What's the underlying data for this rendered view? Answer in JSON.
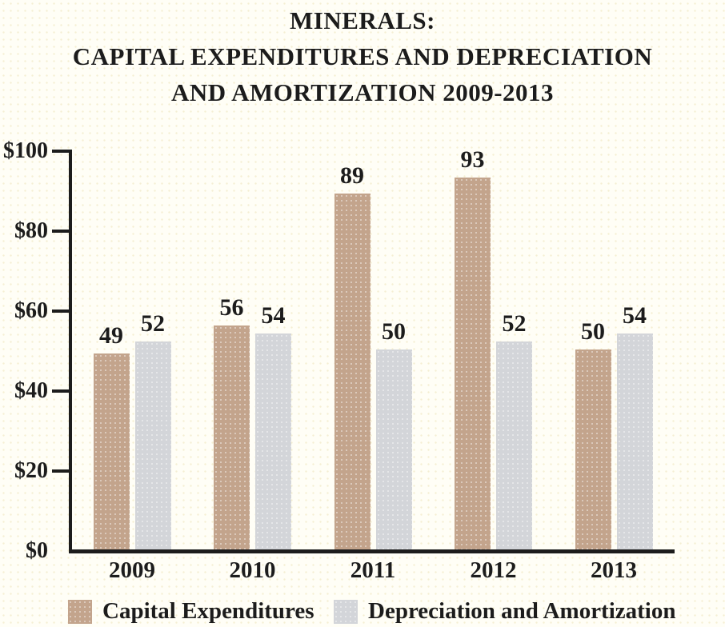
{
  "title": {
    "line1": "MINERALS:",
    "line2": "CAPITAL EXPENDITURES AND DEPRECIATION",
    "line3": "AND AMORTIZATION 2009-2013"
  },
  "colors": {
    "axis": "#1c1c1c",
    "background": "#fffef6",
    "capital_expenditures": "#c3a48c",
    "depreciation_amortization": "#d3d5d9"
  },
  "legend": [
    {
      "label": "Capital Expenditures",
      "color": "#c3a48c"
    },
    {
      "label": "Depreciation and Amortization",
      "color": "#d3d5d9"
    }
  ],
  "chart_data": {
    "type": "bar",
    "title": "MINERALS: CAPITAL EXPENDITURES AND DEPRECIATION AND AMORTIZATION 2009-2013",
    "categories": [
      "2009",
      "2010",
      "2011",
      "2012",
      "2013"
    ],
    "series": [
      {
        "name": "Capital Expenditures",
        "color": "#c3a48c",
        "values": [
          49,
          56,
          89,
          93,
          50
        ]
      },
      {
        "name": "Depreciation and Amortization",
        "color": "#d3d5d9",
        "values": [
          52,
          54,
          50,
          52,
          54
        ]
      }
    ],
    "xlabel": "",
    "ylabel": "",
    "ylim": [
      0,
      100
    ],
    "ytick_step": 20,
    "ytick_values": [
      0,
      20,
      40,
      60,
      80,
      100
    ],
    "ytick_labels": [
      "$0",
      "$20",
      "$40",
      "$60",
      "$80",
      "$100"
    ],
    "value_labels_shown": true,
    "grid": false,
    "legend_position": "bottom"
  }
}
